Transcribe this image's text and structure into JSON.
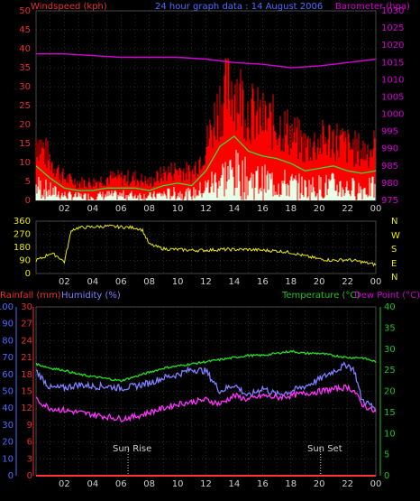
{
  "colors": {
    "wind": "#ff1a1a",
    "gust": "#ff0000",
    "avg": "#33dd33",
    "speed": "#e8ffe8",
    "baro": "#d400d4",
    "dir": "#e8e800",
    "rain": "#ff3333",
    "hum": "#7f7fff",
    "temp": "#22dd22",
    "dew": "#ff33ff",
    "axisRed": "#e83030",
    "axisBlue": "#4d6dff",
    "axisGreen": "#22c022",
    "axisYellow": "#e8e800",
    "axisMagenta": "#d400d4",
    "grid": "#505050",
    "label": "#cfcfcf"
  },
  "header": {
    "windspeed": "Windspeed (kph)",
    "title": "24 hour graph data : 14 August 2006",
    "barometer": "Barometer (hpa)"
  },
  "header2": {
    "rainfall": "Rainfall (mm)",
    "humidity": "Humidity (%)",
    "temperature": "Temperature (°C)",
    "dewpoint": "Dew Point (°C)"
  },
  "compass": [
    "N",
    "W",
    "S",
    "E",
    "N"
  ],
  "sun": {
    "rise": "Sun Rise",
    "set": "Sun Set"
  },
  "chart_data": [
    {
      "type": "line",
      "title": "24 hour graph data : 14 August 2006",
      "xlabel": "",
      "x_ticks": [
        "02",
        "04",
        "06",
        "08",
        "10",
        "12",
        "14",
        "16",
        "18",
        "20",
        "22",
        "00"
      ],
      "ylabel": "Windspeed (kph)",
      "ylim": [
        0,
        50
      ],
      "y_ticks": [
        0,
        5,
        10,
        15,
        20,
        25,
        30,
        35,
        40,
        45,
        50
      ],
      "y2label": "Barometer (hpa)",
      "y2lim": [
        975,
        1030
      ],
      "y2_ticks": [
        975,
        980,
        985,
        990,
        995,
        1000,
        1005,
        1010,
        1015,
        1020,
        1025,
        1030
      ],
      "series": [
        {
          "name": "Windspeed (kph)",
          "axis": "left",
          "x": [
            0,
            1,
            2,
            3,
            4,
            5,
            6,
            7,
            8,
            9,
            10,
            11,
            12,
            13,
            14,
            15,
            16,
            17,
            18,
            19,
            20,
            21,
            22,
            23,
            24
          ],
          "values": [
            14,
            9,
            5,
            4,
            4,
            5,
            5,
            5,
            4,
            6,
            7,
            6,
            12,
            22,
            26,
            20,
            18,
            17,
            15,
            12,
            13,
            14,
            12,
            11,
            12
          ]
        },
        {
          "name": "Barometer (hpa)",
          "axis": "right",
          "x": [
            0,
            2,
            4,
            6,
            8,
            10,
            12,
            14,
            16,
            18,
            20,
            22,
            24
          ],
          "values": [
            1017.5,
            1017.5,
            1017,
            1016.5,
            1016.5,
            1016.5,
            1016,
            1015,
            1014.5,
            1013.5,
            1014,
            1015,
            1016
          ]
        }
      ]
    },
    {
      "type": "line",
      "xlabel": "",
      "x_ticks": [
        "02",
        "04",
        "06",
        "08",
        "10",
        "12",
        "14",
        "16",
        "18",
        "20",
        "22",
        "00"
      ],
      "ylim": [
        0,
        360
      ],
      "y_ticks": [
        0,
        90,
        180,
        270,
        360
      ],
      "y2_ticks": [
        "N",
        "E",
        "S",
        "W",
        "N"
      ],
      "series": [
        {
          "name": "Wind direction",
          "x": [
            0,
            0.5,
            1,
            1.5,
            2,
            2.5,
            3,
            4,
            5,
            6,
            7,
            7.5,
            8,
            9,
            10,
            11,
            12,
            13,
            14,
            15,
            16,
            17,
            18,
            19,
            20,
            21,
            22,
            23,
            24
          ],
          "values": [
            90,
            110,
            140,
            120,
            80,
            300,
            315,
            320,
            325,
            320,
            315,
            300,
            200,
            170,
            165,
            160,
            160,
            165,
            165,
            165,
            160,
            155,
            145,
            120,
            100,
            90,
            95,
            80,
            60
          ]
        }
      ]
    },
    {
      "type": "line",
      "xlabel": "",
      "x_ticks": [
        "02",
        "04",
        "06",
        "08",
        "10",
        "12",
        "14",
        "16",
        "18",
        "20",
        "22",
        "00"
      ],
      "ylabel": "Rainfall (mm) / Humidity (%)",
      "ylim": [
        0,
        100
      ],
      "y_ticks": [
        0,
        10,
        20,
        30,
        40,
        50,
        60,
        70,
        80,
        90,
        100
      ],
      "y_ticks_rain": [
        0,
        3,
        6,
        9,
        12,
        15,
        18,
        21,
        24,
        27,
        30
      ],
      "y2label": "Temperature (°C) / Dew Point (°C)",
      "y2lim": [
        0,
        40
      ],
      "y2_ticks": [
        0,
        5,
        10,
        15,
        20,
        25,
        30,
        35,
        40
      ],
      "annotations": [
        {
          "x": 6.5,
          "text": "Sun Rise"
        },
        {
          "x": 20.1,
          "text": "Sun Set"
        }
      ],
      "series": [
        {
          "name": "Rainfall (mm)",
          "axis": "left",
          "x": [
            0,
            24
          ],
          "values": [
            0,
            0
          ]
        },
        {
          "name": "Humidity (%)",
          "axis": "left",
          "x": [
            0,
            1,
            2,
            3,
            4,
            5,
            6,
            7,
            8,
            9,
            10,
            11,
            12,
            13,
            14,
            15,
            16,
            17,
            18,
            19,
            20,
            21,
            22,
            22.5,
            23,
            24
          ],
          "values": [
            62,
            52,
            52,
            54,
            53,
            53,
            52,
            53,
            55,
            58,
            60,
            63,
            62,
            50,
            54,
            47,
            52,
            48,
            50,
            53,
            57,
            62,
            66,
            62,
            45,
            40
          ]
        },
        {
          "name": "Temperature (°C)",
          "axis": "right",
          "x": [
            0,
            1,
            2,
            3,
            4,
            5,
            6,
            7,
            8,
            9,
            10,
            11,
            12,
            13,
            14,
            15,
            16,
            17,
            18,
            19,
            20,
            21,
            22,
            23,
            24
          ],
          "values": [
            26.5,
            25.5,
            25,
            24,
            23.5,
            23,
            22.5,
            23.5,
            24.5,
            25.5,
            26,
            26.5,
            27,
            27.5,
            28,
            28.5,
            28.5,
            29,
            29.5,
            29,
            29,
            28.5,
            28,
            28,
            27
          ]
        },
        {
          "name": "Dew Point (°C)",
          "axis": "right",
          "x": [
            0,
            1,
            2,
            3,
            4,
            5,
            6,
            7,
            8,
            9,
            10,
            11,
            12,
            13,
            14,
            15,
            16,
            17,
            18,
            19,
            20,
            21,
            22,
            22.5,
            23,
            24
          ],
          "values": [
            18,
            16,
            15.5,
            15,
            14.5,
            14,
            13.5,
            14,
            15,
            16,
            17,
            17.5,
            18,
            17,
            19,
            18,
            19,
            18.5,
            19,
            19.5,
            20,
            20.5,
            21,
            20,
            17,
            15
          ]
        }
      ]
    }
  ]
}
